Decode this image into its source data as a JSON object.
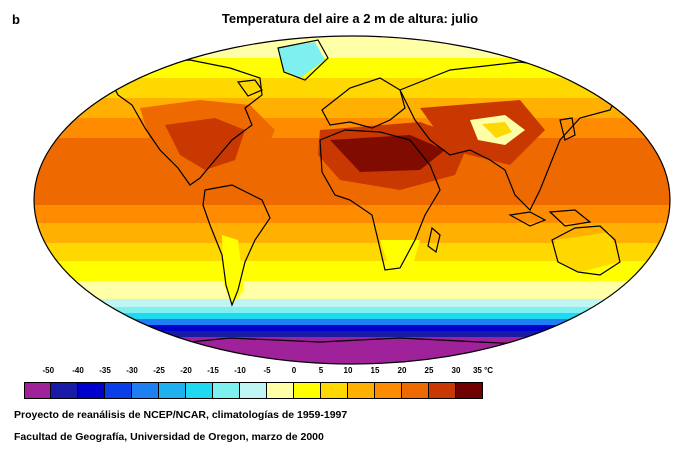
{
  "panel_letter": "b",
  "title": "Temperatura del aire a 2 m de altura: julio",
  "legend": {
    "labels": [
      "-50",
      "-40",
      "-35",
      "-30",
      "-25",
      "-20",
      "-15",
      "-10",
      "-5",
      "0",
      "5",
      "10",
      "15",
      "20",
      "25",
      "30",
      "35 °C"
    ],
    "colors": [
      "#a0229a",
      "#1a1aa8",
      "#0000cc",
      "#0a3ee6",
      "#1e7ff2",
      "#1fb0f0",
      "#20d8f0",
      "#7ef0f0",
      "#bff6f3",
      "#ffffa8",
      "#ffff00",
      "#ffd800",
      "#ffb000",
      "#ff8c00",
      "#ee6a00",
      "#c83800",
      "#6e0000"
    ]
  },
  "credits": {
    "line1": "Proyecto de reanálisis de NCEP/NCAR, climatologías de 1959-1997",
    "line2": "Facultad de Geografía, Universidad de Oregon, marzo de 2000"
  }
}
